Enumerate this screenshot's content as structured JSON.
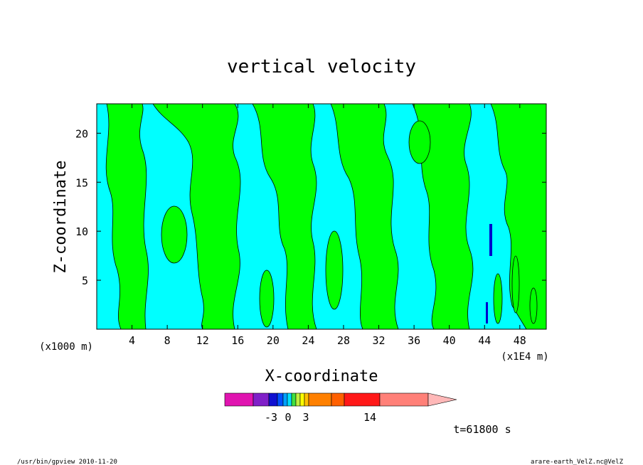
{
  "chart_data": {
    "type": "heatmap",
    "title": "vertical velocity",
    "xlabel": "X-coordinate",
    "ylabel": "Z-coordinate",
    "x_unit": "(x1000 m)",
    "x_unit_secondary": "(x1E4 m)",
    "x_ticks": [
      4,
      8,
      12,
      16,
      20,
      24,
      28,
      32,
      36,
      40,
      44,
      48
    ],
    "y_ticks": [
      5,
      10,
      15,
      20
    ],
    "xlim": [
      0,
      51
    ],
    "ylim": [
      0,
      23
    ],
    "grid": false,
    "colorbar": {
      "tick_labels": [
        "-3",
        "0",
        "3",
        "14"
      ],
      "tick_values": [
        -3,
        0,
        3,
        14
      ],
      "colors": [
        "#e014b0",
        "#8020c8",
        "#1010d0",
        "#0050ff",
        "#00a0ff",
        "#00e0ff",
        "#40e040",
        "#c0f040",
        "#ffff00",
        "#ffc000",
        "#ff8000",
        "#ff6000",
        "#ff1818",
        "#ff8078",
        "#ffb8b8"
      ]
    },
    "dominant_colors": {
      "negative": "#00ffff",
      "positive": "#00ff00",
      "strong_negative": "#1010d0"
    },
    "annotation_time": "t=61800 s"
  },
  "footer": {
    "left": "/usr/bin/gpview   2010-11-20",
    "right": "arare-earth_VelZ.nc@VelZ"
  }
}
